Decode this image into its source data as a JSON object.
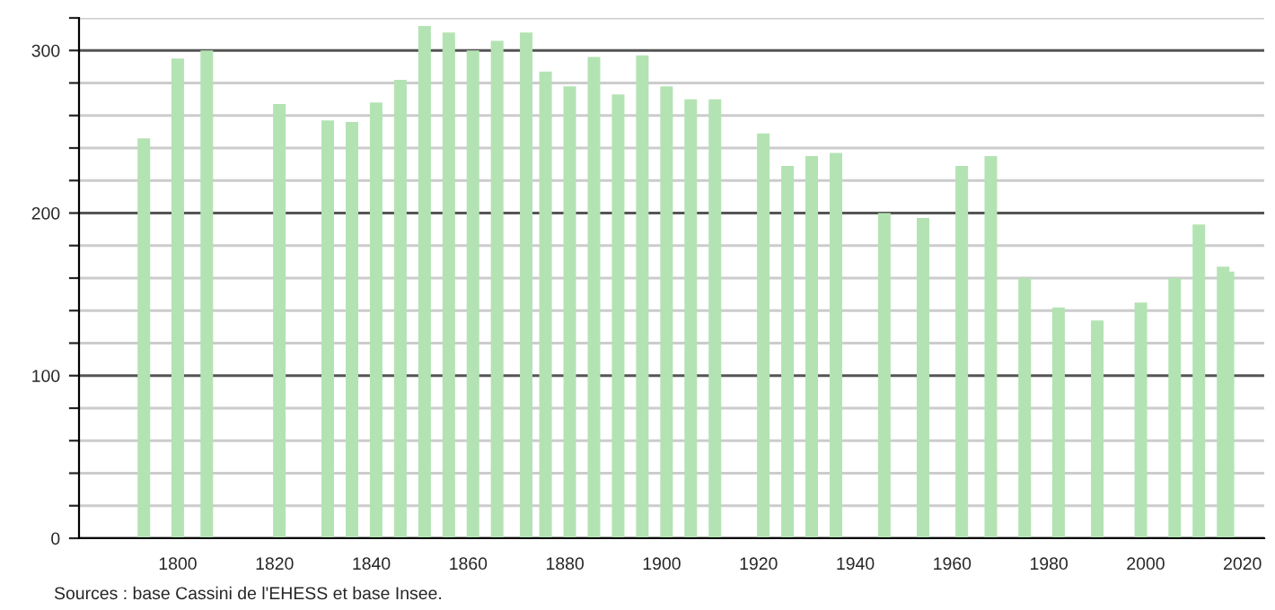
{
  "chart_data": {
    "type": "bar",
    "x": [
      1793,
      1800,
      1806,
      1821,
      1831,
      1836,
      1841,
      1846,
      1851,
      1856,
      1861,
      1866,
      1872,
      1876,
      1881,
      1886,
      1891,
      1896,
      1901,
      1906,
      1911,
      1921,
      1926,
      1931,
      1936,
      1946,
      1954,
      1962,
      1968,
      1975,
      1982,
      1990,
      1999,
      2006,
      2011,
      2016,
      2017
    ],
    "series": [
      {
        "color": "#b3e3b3",
        "values": [
          246,
          295,
          300,
          267,
          257,
          256,
          268,
          282,
          315,
          311,
          300,
          306,
          311,
          287,
          278,
          296,
          273,
          297,
          278,
          270,
          270,
          249,
          229,
          235,
          237,
          200,
          197,
          229,
          235,
          160,
          142,
          134,
          145,
          160,
          193,
          167,
          164
        ]
      }
    ],
    "xlim": [
      1779.6,
      2024.5
    ],
    "xticks": [
      1800,
      1820,
      1840,
      1860,
      1880,
      1900,
      1920,
      1940,
      1960,
      1980,
      2000,
      2020
    ],
    "ylim": [
      0,
      320
    ],
    "yticks": [
      0,
      {
        "value": 20,
        "label": null
      },
      {
        "value": 40,
        "label": null
      },
      {
        "value": 60,
        "label": null
      },
      {
        "value": 80,
        "label": null
      },
      100,
      {
        "value": 120,
        "label": null
      },
      {
        "value": 140,
        "label": null
      },
      {
        "value": 160,
        "label": null
      },
      {
        "value": 180,
        "label": null
      },
      200,
      {
        "value": 220,
        "label": null
      },
      {
        "value": 240,
        "label": null
      },
      {
        "value": 260,
        "label": null
      },
      {
        "value": 280,
        "label": null
      },
      300,
      {
        "value": 320,
        "label": null
      }
    ],
    "grid": "y",
    "legend": false,
    "annotations": [
      "Sources : base Cassini de l'EHESS et base Insee."
    ]
  }
}
